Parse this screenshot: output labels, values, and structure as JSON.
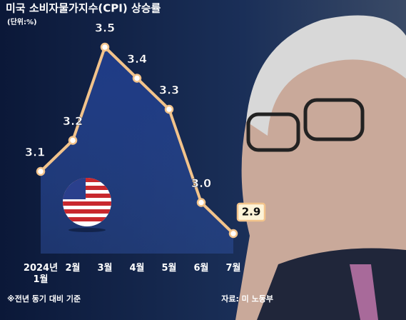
{
  "chart_data": {
    "type": "line",
    "title": "미국 소비자물가지수(CPI) 상승률",
    "subtitle": "(단위:%)",
    "categories": [
      "2024년\n1월",
      "2월",
      "3월",
      "4월",
      "5월",
      "6월",
      "7월"
    ],
    "values": [
      3.1,
      3.2,
      3.5,
      3.4,
      3.3,
      3.0,
      2.9
    ],
    "value_labels": [
      "3.1",
      "3.2",
      "3.5",
      "3.4",
      "3.3",
      "3.0",
      "2.9"
    ],
    "color": "#f2c38b",
    "note": "※전년 동기 대비 기준",
    "source": "자료: 미 노동부"
  }
}
